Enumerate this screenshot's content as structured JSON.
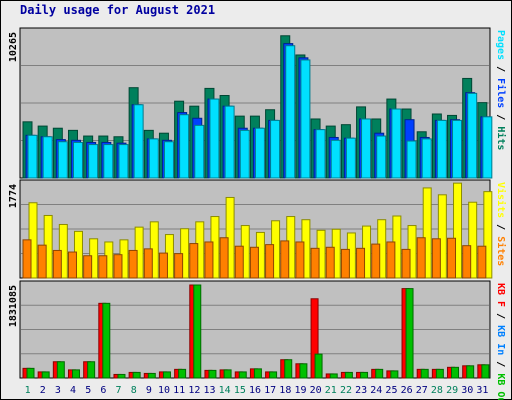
{
  "page": {
    "title": "Daily usage for August 2021"
  },
  "colors": {
    "hits": "#00805c",
    "files": "#0040ff",
    "pages": "#00e0ff",
    "visits": "#ffff00",
    "sites": "#ff8000",
    "kb_f": "#ff0000",
    "kb_in": "#0080ff",
    "kb_out": "#00c000",
    "weekday_label": "#000080",
    "weekend_label": "#00805c"
  },
  "chart_data": [
    {
      "type": "bar",
      "panel": "top",
      "ymax_label": "10265",
      "ylim": [
        0,
        10265
      ],
      "right_label_parts": [
        {
          "text": "Pages",
          "color": "#00e0ff"
        },
        {
          "text": " / ",
          "color": "#000000"
        },
        {
          "text": "Files",
          "color": "#0040ff"
        },
        {
          "text": " / ",
          "color": "#000000"
        },
        {
          "text": "Hits",
          "color": "#00805c"
        }
      ],
      "categories": [
        "1",
        "2",
        "3",
        "4",
        "5",
        "6",
        "7",
        "8",
        "9",
        "10",
        "11",
        "12",
        "13",
        "14",
        "15",
        "16",
        "17",
        "18",
        "19",
        "20",
        "21",
        "22",
        "23",
        "24",
        "25",
        "26",
        "27",
        "28",
        "29",
        "30",
        "31"
      ],
      "series": [
        {
          "key": "hits",
          "values": [
            3950,
            3650,
            3500,
            3350,
            2950,
            2950,
            2900,
            6350,
            3350,
            3150,
            5400,
            5050,
            6300,
            5800,
            4350,
            4350,
            4800,
            10000,
            8650,
            4150,
            3650,
            3750,
            5000,
            4150,
            5550,
            4850,
            3250,
            4500,
            4400,
            7000,
            5300
          ]
        },
        {
          "key": "files",
          "values": [
            3000,
            2900,
            2700,
            2650,
            2500,
            2500,
            2450,
            5150,
            2750,
            2650,
            4600,
            4200,
            5550,
            5050,
            3500,
            3500,
            4050,
            9450,
            8450,
            3400,
            2850,
            2800,
            4150,
            3150,
            4850,
            4100,
            2850,
            4050,
            4100,
            6000,
            4300
          ]
        },
        {
          "key": "pages",
          "values": [
            3000,
            2900,
            2550,
            2500,
            2350,
            2350,
            2350,
            5150,
            2750,
            2550,
            4450,
            3700,
            5550,
            5050,
            3350,
            3500,
            4050,
            9300,
            8300,
            3400,
            2650,
            2800,
            4150,
            2950,
            4850,
            2600,
            2750,
            4050,
            4050,
            5950,
            4300
          ]
        }
      ]
    },
    {
      "type": "bar",
      "panel": "middle",
      "ymax_label": "1774",
      "ylim": [
        0,
        1774
      ],
      "right_label_parts": [
        {
          "text": "Visits",
          "color": "#ffff00"
        },
        {
          "text": " / ",
          "color": "#000000"
        },
        {
          "text": "Sites",
          "color": "#ff8000"
        }
      ],
      "categories": [
        "1",
        "2",
        "3",
        "4",
        "5",
        "6",
        "7",
        "8",
        "9",
        "10",
        "11",
        "12",
        "13",
        "14",
        "15",
        "16",
        "17",
        "18",
        "19",
        "20",
        "21",
        "22",
        "23",
        "24",
        "25",
        "26",
        "27",
        "28",
        "29",
        "30",
        "31"
      ],
      "series": [
        {
          "key": "visits",
          "values": [
            1420,
            1180,
            1010,
            880,
            740,
            680,
            720,
            960,
            1060,
            820,
            930,
            1060,
            1160,
            1520,
            990,
            860,
            1080,
            1160,
            1100,
            900,
            920,
            850,
            980,
            1100,
            1170,
            990,
            1700,
            1570,
            1790,
            1430,
            1630
          ]
        },
        {
          "key": "sites",
          "values": [
            720,
            620,
            520,
            490,
            420,
            420,
            440,
            520,
            550,
            470,
            460,
            650,
            680,
            760,
            600,
            580,
            630,
            700,
            680,
            560,
            580,
            540,
            560,
            640,
            680,
            540,
            760,
            740,
            750,
            610,
            600
          ]
        }
      ]
    },
    {
      "type": "bar",
      "panel": "bottom",
      "ymax_label": "1831085",
      "ylim": [
        0,
        1831085
      ],
      "right_label_parts": [
        {
          "text": "KB F",
          "color": "#ff0000"
        },
        {
          "text": " / ",
          "color": "#000000"
        },
        {
          "text": "KB In",
          "color": "#0080ff"
        },
        {
          "text": " / ",
          "color": "#000000"
        },
        {
          "text": "KB Out",
          "color": "#00c000"
        }
      ],
      "categories": [
        "1",
        "2",
        "3",
        "4",
        "5",
        "6",
        "7",
        "8",
        "9",
        "10",
        "11",
        "12",
        "13",
        "14",
        "15",
        "16",
        "17",
        "18",
        "19",
        "20",
        "21",
        "22",
        "23",
        "24",
        "25",
        "26",
        "27",
        "28",
        "29",
        "30",
        "31"
      ],
      "series": [
        {
          "key": "kb_f",
          "values": [
            190000,
            120000,
            320000,
            160000,
            320000,
            1470000,
            70000,
            110000,
            90000,
            120000,
            170000,
            1831085,
            150000,
            160000,
            120000,
            180000,
            120000,
            360000,
            280000,
            1560000,
            80000,
            110000,
            110000,
            170000,
            140000,
            1760000,
            170000,
            170000,
            210000,
            240000,
            260000
          ]
        },
        {
          "key": "kb_in",
          "values": [
            0,
            0,
            0,
            0,
            0,
            0,
            0,
            0,
            0,
            0,
            0,
            0,
            0,
            0,
            0,
            0,
            0,
            0,
            0,
            0,
            0,
            0,
            0,
            0,
            0,
            0,
            0,
            0,
            0,
            0,
            0
          ]
        },
        {
          "key": "kb_out",
          "values": [
            190000,
            120000,
            320000,
            160000,
            320000,
            1470000,
            70000,
            110000,
            90000,
            120000,
            170000,
            1831085,
            150000,
            160000,
            120000,
            180000,
            120000,
            360000,
            280000,
            470000,
            80000,
            110000,
            110000,
            170000,
            140000,
            1760000,
            170000,
            170000,
            210000,
            240000,
            260000
          ]
        }
      ]
    }
  ],
  "weekend_days": [
    "1",
    "7",
    "8",
    "14",
    "15",
    "21",
    "22",
    "28",
    "29"
  ]
}
